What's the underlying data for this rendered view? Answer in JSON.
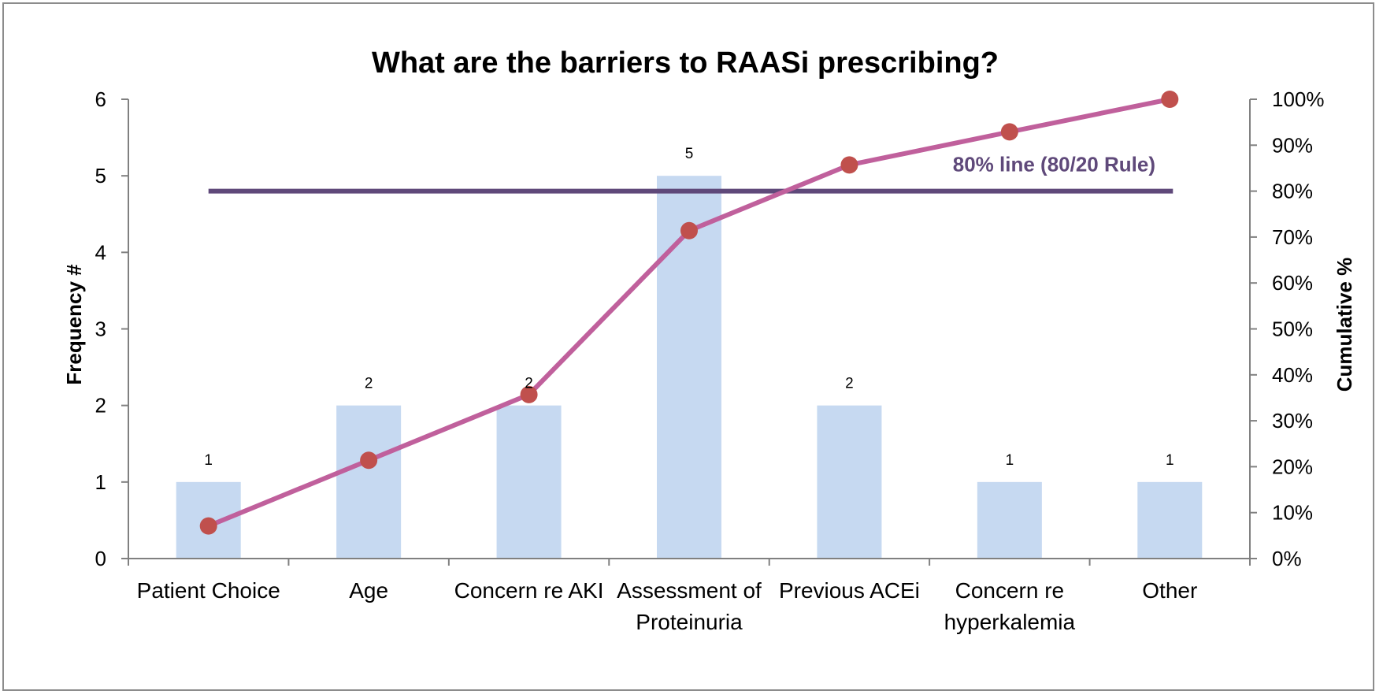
{
  "chart_data": {
    "type": "bar",
    "title": "What are the barriers to RAASi prescribing?",
    "ylabel": "Frequency #",
    "y2label": "Cumulative %",
    "ylim": [
      0,
      6
    ],
    "y2lim": [
      0,
      100
    ],
    "y_ticks": [
      "0",
      "1",
      "2",
      "3",
      "4",
      "5",
      "6"
    ],
    "y2_ticks": [
      "0%",
      "10%",
      "20%",
      "30%",
      "40%",
      "50%",
      "60%",
      "70%",
      "80%",
      "90%",
      "100%"
    ],
    "categories": [
      [
        "Patient Choice"
      ],
      [
        "Age"
      ],
      [
        "Concern re AKI"
      ],
      [
        "Assessment of",
        "Proteinuria"
      ],
      [
        "Previous ACEi"
      ],
      [
        "Concern re",
        "hyperkalemia"
      ],
      [
        "Other"
      ]
    ],
    "series": [
      {
        "type": "bar",
        "axis": "left",
        "color": "#c6d9f1",
        "values": [
          1,
          2,
          2,
          5,
          2,
          1,
          1
        ],
        "data_labels": [
          "1",
          "2",
          "2",
          "5",
          "2",
          "1",
          "1"
        ]
      },
      {
        "type": "line",
        "axis": "right",
        "color": "#c0609c",
        "marker_color": "#c0504d",
        "values": [
          7.1,
          21.4,
          35.7,
          71.4,
          85.7,
          92.9,
          100
        ]
      }
    ],
    "reference_line": {
      "label": "80% line  (80/20 Rule)",
      "value": 80,
      "axis": "right",
      "color": "#5f497a"
    },
    "grid": false,
    "legend": "none"
  }
}
